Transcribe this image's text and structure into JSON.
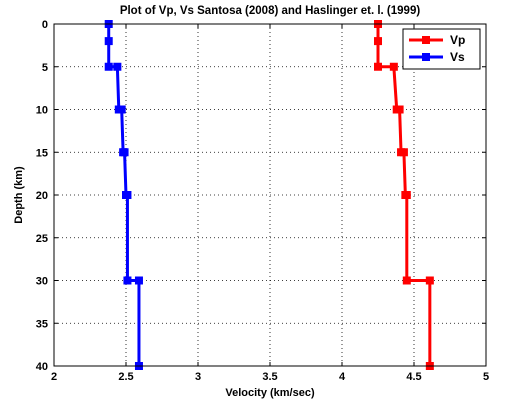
{
  "chart_data": {
    "type": "line",
    "title": "Plot of Vp, Vs  Santosa (2008) and Haslinger et.   l. (1999)",
    "xlabel": "Velocity (km/sec)",
    "ylabel": "Depth (km)",
    "xlim": [
      2,
      5
    ],
    "ylim": [
      0,
      40
    ],
    "y_reversed": true,
    "xticks": [
      2,
      2.5,
      3,
      3.5,
      4,
      4.5,
      5
    ],
    "yticks": [
      0,
      5,
      10,
      15,
      20,
      25,
      30,
      35,
      40
    ],
    "xtick_labels": [
      "2",
      "2.5",
      "3",
      "3.5",
      "4",
      "4.5",
      "5"
    ],
    "ytick_labels": [
      "0",
      "5",
      "10",
      "15",
      "20",
      "25",
      "30",
      "35",
      "40"
    ],
    "grid": true,
    "legend_position": "top-right",
    "series": [
      {
        "name": "Vp",
        "color": "#ff0000",
        "marker": "square",
        "x": [
          4.25,
          4.25,
          4.25,
          4.36,
          4.38,
          4.4,
          4.41,
          4.43,
          4.44,
          4.45,
          4.45,
          4.61,
          4.61
        ],
        "y": [
          0,
          2,
          5,
          5,
          10,
          10,
          15,
          15,
          20,
          20,
          30,
          30,
          40
        ]
      },
      {
        "name": "Vs",
        "color": "#0000ff",
        "marker": "square",
        "x": [
          2.38,
          2.38,
          2.38,
          2.44,
          2.45,
          2.47,
          2.48,
          2.49,
          2.5,
          2.51,
          2.51,
          2.59,
          2.59
        ],
        "y": [
          0,
          2,
          5,
          5,
          10,
          10,
          15,
          15,
          20,
          20,
          30,
          30,
          40
        ]
      }
    ]
  }
}
